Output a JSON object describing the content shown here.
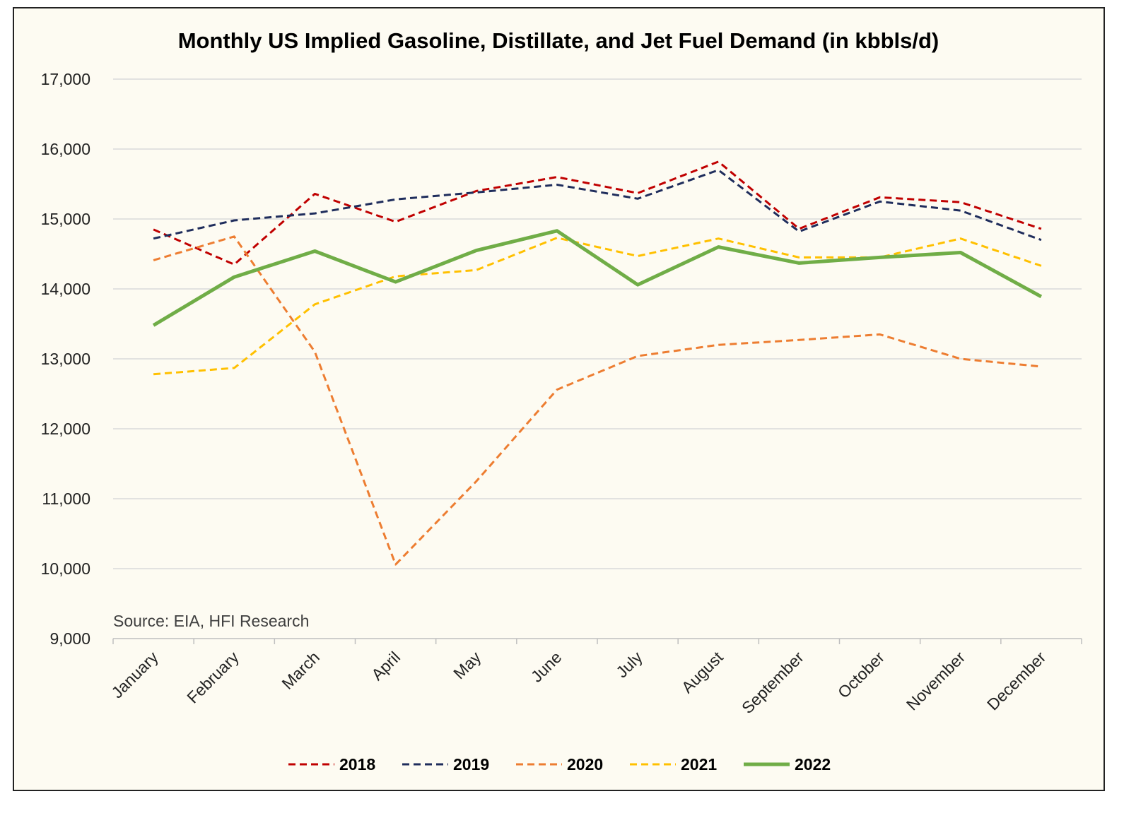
{
  "chart_data": {
    "type": "line",
    "title": "Monthly US Implied Gasoline, Distillate, and Jet Fuel Demand (in kbbls/d)",
    "xlabel": "",
    "ylabel": "",
    "ylim": [
      9000,
      17000
    ],
    "y_ticks": [
      "9,000",
      "10,000",
      "11,000",
      "12,000",
      "13,000",
      "14,000",
      "15,000",
      "16,000",
      "17,000"
    ],
    "categories": [
      "January",
      "February",
      "March",
      "April",
      "May",
      "June",
      "July",
      "August",
      "September",
      "October",
      "November",
      "December"
    ],
    "grid": "horizontal",
    "legend_position": "bottom",
    "annotation": "Source: EIA, HFI Research",
    "series": [
      {
        "name": "2018",
        "color": "#c00000",
        "style": "dashed",
        "values": [
          14850,
          14350,
          15360,
          14960,
          15400,
          15600,
          15370,
          15820,
          14860,
          15310,
          15240,
          14860
        ]
      },
      {
        "name": "2019",
        "color": "#1f2d5c",
        "style": "dashed",
        "values": [
          14720,
          14980,
          15080,
          15280,
          15380,
          15490,
          15290,
          15700,
          14820,
          15250,
          15120,
          14700
        ]
      },
      {
        "name": "2020",
        "color": "#ed7d31",
        "style": "dashed",
        "values": [
          14410,
          14750,
          13100,
          10060,
          11250,
          12560,
          13040,
          13200,
          13270,
          13350,
          13000,
          12890
        ]
      },
      {
        "name": "2021",
        "color": "#ffc000",
        "style": "dashed",
        "values": [
          12780,
          12870,
          13780,
          14180,
          14270,
          14730,
          14470,
          14720,
          14450,
          14450,
          14720,
          14330
        ]
      },
      {
        "name": "2022",
        "color": "#70ad47",
        "style": "solid",
        "values": [
          13480,
          14170,
          14540,
          14100,
          14550,
          14830,
          14060,
          14600,
          14370,
          14450,
          14520,
          13890
        ]
      }
    ]
  }
}
